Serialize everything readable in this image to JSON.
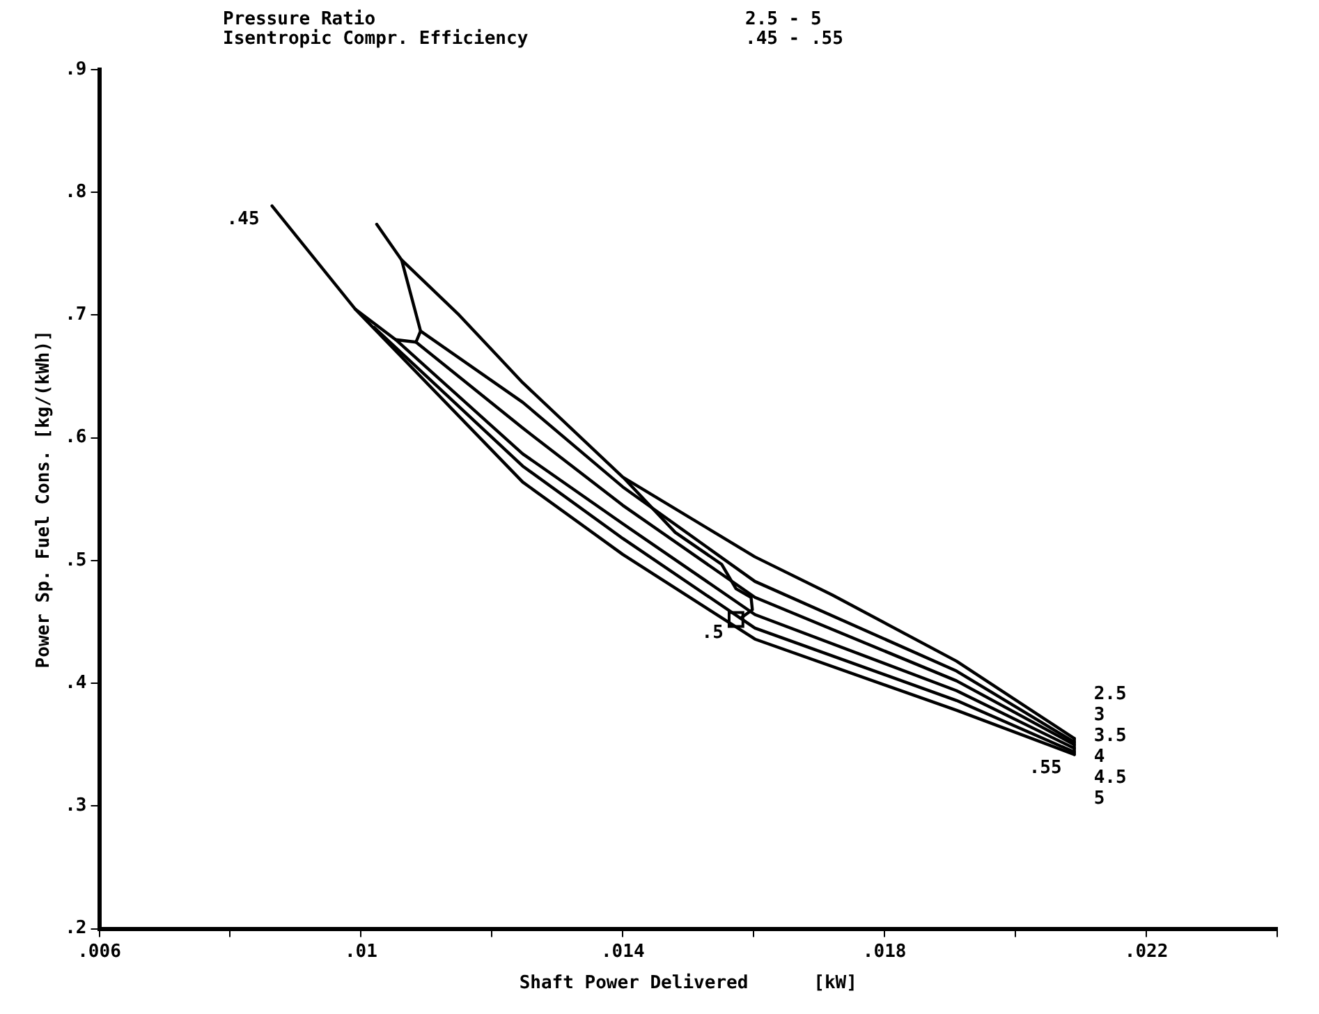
{
  "chart_data": {
    "type": "line",
    "xlabel": "Shaft Power Delivered      [kW]",
    "ylabel": "Power Sp. Fuel Cons. [kg/(kWh)]",
    "annotations": [
      "Pressure Ratio",
      "2.5 - 5",
      "Isentropic Compr. Efficiency",
      ".45 - .55",
      {
        "text": ".45",
        "x": 0.00864,
        "y": 0.789
      },
      {
        "text": ".5",
        "x": 0.01573,
        "y": 0.452
      },
      {
        "text": ".55",
        "x": 0.0209,
        "y": 0.342
      }
    ],
    "xlim": [
      0.006,
      0.024
    ],
    "ylim": [
      0.2,
      0.9
    ],
    "xticks": [
      {
        "value": 0.006,
        "label": ".006"
      },
      {
        "value": 0.008,
        "label": null
      },
      {
        "value": 0.01,
        "label": ".01"
      },
      {
        "value": 0.012,
        "label": null
      },
      {
        "value": 0.014,
        "label": ".014"
      },
      {
        "value": 0.016,
        "label": null
      },
      {
        "value": 0.018,
        "label": ".018"
      },
      {
        "value": 0.02,
        "label": null
      },
      {
        "value": 0.022,
        "label": ".022"
      },
      {
        "value": 0.024,
        "label": null
      }
    ],
    "yticks": [
      {
        "value": 0.2,
        "label": ".2"
      },
      {
        "value": 0.3,
        "label": ".3"
      },
      {
        "value": 0.4,
        "label": ".4"
      },
      {
        "value": 0.5,
        "label": ".5"
      },
      {
        "value": 0.6,
        "label": ".6"
      },
      {
        "value": 0.7,
        "label": ".7"
      },
      {
        "value": 0.8,
        "label": ".8"
      },
      {
        "value": 0.9,
        "label": ".9"
      }
    ],
    "grid": false,
    "legend": false,
    "marker": "none",
    "line_style": "solid",
    "series": [
      {
        "name": "2.5",
        "color": "#000000",
        "x": [
          0.01024,
          0.01062,
          0.0115,
          0.01247,
          0.014,
          0.01602,
          0.0172,
          0.0191,
          0.0209
        ],
        "values": [
          0.774,
          0.745,
          0.7,
          0.645,
          0.568,
          0.503,
          0.472,
          0.418,
          0.355
        ]
      },
      {
        "name": "3",
        "color": "#000000",
        "x": [
          0.01091,
          0.01247,
          0.014,
          0.01602,
          0.0191,
          0.0209
        ],
        "values": [
          0.687,
          0.629,
          0.56,
          0.483,
          0.41,
          0.352
        ]
      },
      {
        "name": "3.5",
        "color": "#000000",
        "x": [
          0.01084,
          0.01247,
          0.014,
          0.01602,
          0.0191,
          0.0209
        ],
        "values": [
          0.678,
          0.608,
          0.545,
          0.47,
          0.402,
          0.35
        ]
      },
      {
        "name": "4",
        "color": "#000000",
        "x": [
          0.01053,
          0.01247,
          0.014,
          0.01602,
          0.0191,
          0.0209
        ],
        "values": [
          0.68,
          0.587,
          0.53,
          0.456,
          0.394,
          0.347
        ]
      },
      {
        "name": "4.5",
        "color": "#000000",
        "x": [
          0.0102,
          0.01247,
          0.014,
          0.01602,
          0.0191,
          0.0209
        ],
        "values": [
          0.69,
          0.577,
          0.518,
          0.445,
          0.386,
          0.344
        ]
      },
      {
        "name": "5",
        "color": "#000000",
        "x": [
          0.00864,
          0.00991,
          0.01247,
          0.014,
          0.01602,
          0.0191,
          0.0209
        ],
        "values": [
          0.789,
          0.705,
          0.564,
          0.505,
          0.436,
          0.378,
          0.342
        ]
      },
      {
        "color": "#000000",
        "x": [
          0.01062,
          0.01091,
          0.01084,
          0.01053,
          0.00991
        ],
        "values": [
          0.745,
          0.687,
          0.678,
          0.68,
          0.705
        ]
      },
      {
        "color": "#000000",
        "x": [
          0.01402,
          0.0148,
          0.01551,
          0.01573,
          0.01596,
          0.01598,
          0.0158
        ],
        "values": [
          0.567,
          0.523,
          0.497,
          0.477,
          0.47,
          0.46,
          0.453
        ]
      },
      {
        "color": "#000000",
        "x": [
          0.0209,
          0.0209
        ],
        "values": [
          0.355,
          0.342
        ]
      },
      {
        "type": "scatter",
        "marker": "square",
        "color": "#000000",
        "x": [
          0.01573
        ],
        "values": [
          0.452
        ]
      }
    ]
  }
}
